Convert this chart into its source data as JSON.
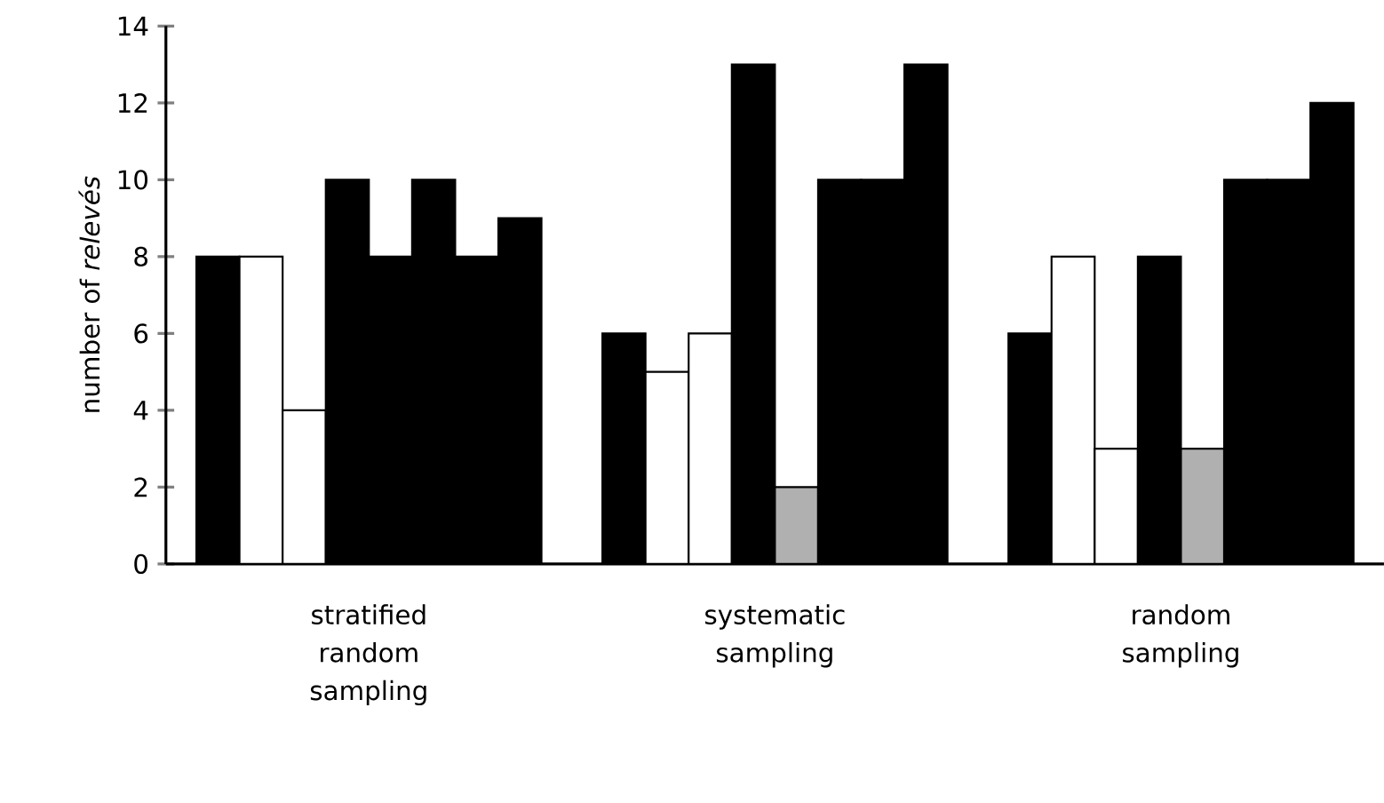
{
  "chart_data": {
    "type": "bar",
    "ylabel": "number of *relevés*",
    "categories": [
      "stratified random sampling",
      "systematic sampling",
      "random sampling"
    ],
    "series": [
      {
        "color": "#000000",
        "values": [
          8,
          6,
          6
        ]
      },
      {
        "color": "#ffffff",
        "values": [
          8,
          5,
          8
        ]
      },
      {
        "color": "#ffffff",
        "values": [
          4,
          6,
          3
        ]
      },
      {
        "color": "#000000",
        "values": [
          10,
          13,
          8
        ]
      },
      {
        "colors": [
          "#000000",
          "#b0b0b0",
          "#b0b0b0"
        ],
        "values": [
          8,
          2,
          3
        ]
      },
      {
        "color": "#000000",
        "values": [
          10,
          10,
          10
        ]
      },
      {
        "color": "#000000",
        "values": [
          8,
          10,
          10
        ]
      },
      {
        "color": "#000000",
        "values": [
          9,
          13,
          12
        ]
      }
    ],
    "ylim": [
      0,
      14
    ],
    "yticks": [
      0,
      2,
      4,
      6,
      8,
      10,
      12,
      14
    ]
  }
}
